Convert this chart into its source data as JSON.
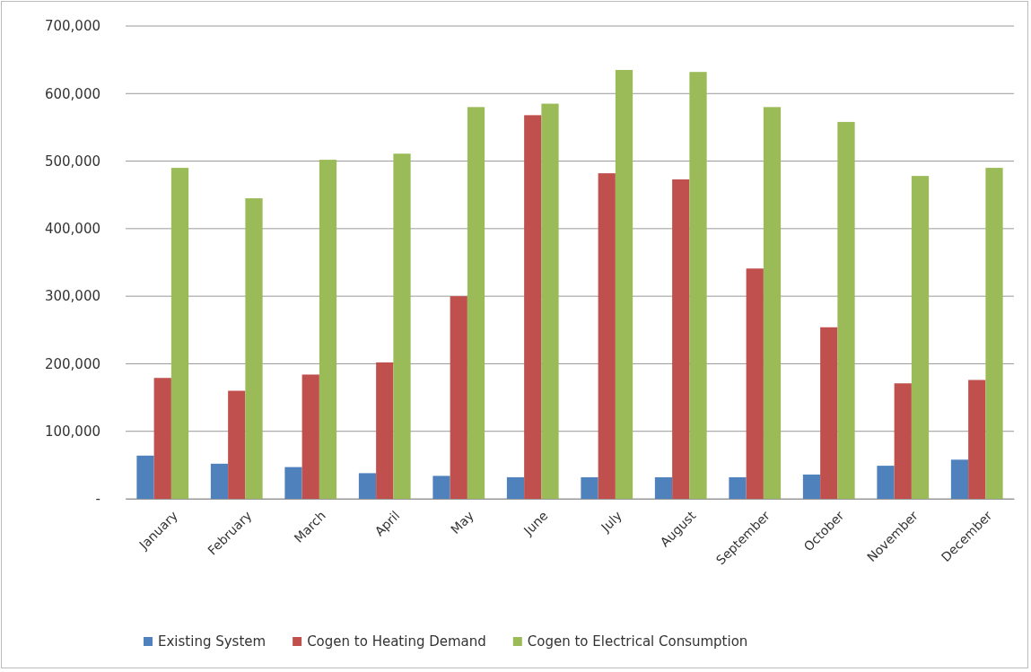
{
  "chart_data": {
    "type": "bar",
    "categories": [
      "January",
      "February",
      "March",
      "April",
      "May",
      "June",
      "July",
      "August",
      "September",
      "October",
      "November",
      "December"
    ],
    "series": [
      {
        "name": "Existing System",
        "color": "#4f81bd",
        "values": [
          64000,
          52000,
          47000,
          38000,
          34000,
          32000,
          32000,
          32000,
          32000,
          36000,
          49000,
          58000
        ]
      },
      {
        "name": "Cogen to Heating Demand",
        "color": "#c0504d",
        "values": [
          179000,
          160000,
          184000,
          202000,
          300000,
          568000,
          482000,
          473000,
          341000,
          254000,
          171000,
          176000
        ]
      },
      {
        "name": "Cogen to Electrical Consumption",
        "color": "#9bbb59",
        "values": [
          490000,
          445000,
          502000,
          511000,
          580000,
          585000,
          635000,
          632000,
          580000,
          558000,
          478000,
          490000
        ]
      }
    ],
    "ylim": [
      0,
      700000
    ],
    "yticks": [
      {
        "value": 0,
        "label": "-"
      },
      {
        "value": 100000,
        "label": "100,000"
      },
      {
        "value": 200000,
        "label": "200,000"
      },
      {
        "value": 300000,
        "label": "300,000"
      },
      {
        "value": 400000,
        "label": "400,000"
      },
      {
        "value": 500000,
        "label": "500,000"
      },
      {
        "value": 600000,
        "label": "600,000"
      },
      {
        "value": 700000,
        "label": "700,000"
      }
    ],
    "grid": "y",
    "legend": "bottom"
  }
}
